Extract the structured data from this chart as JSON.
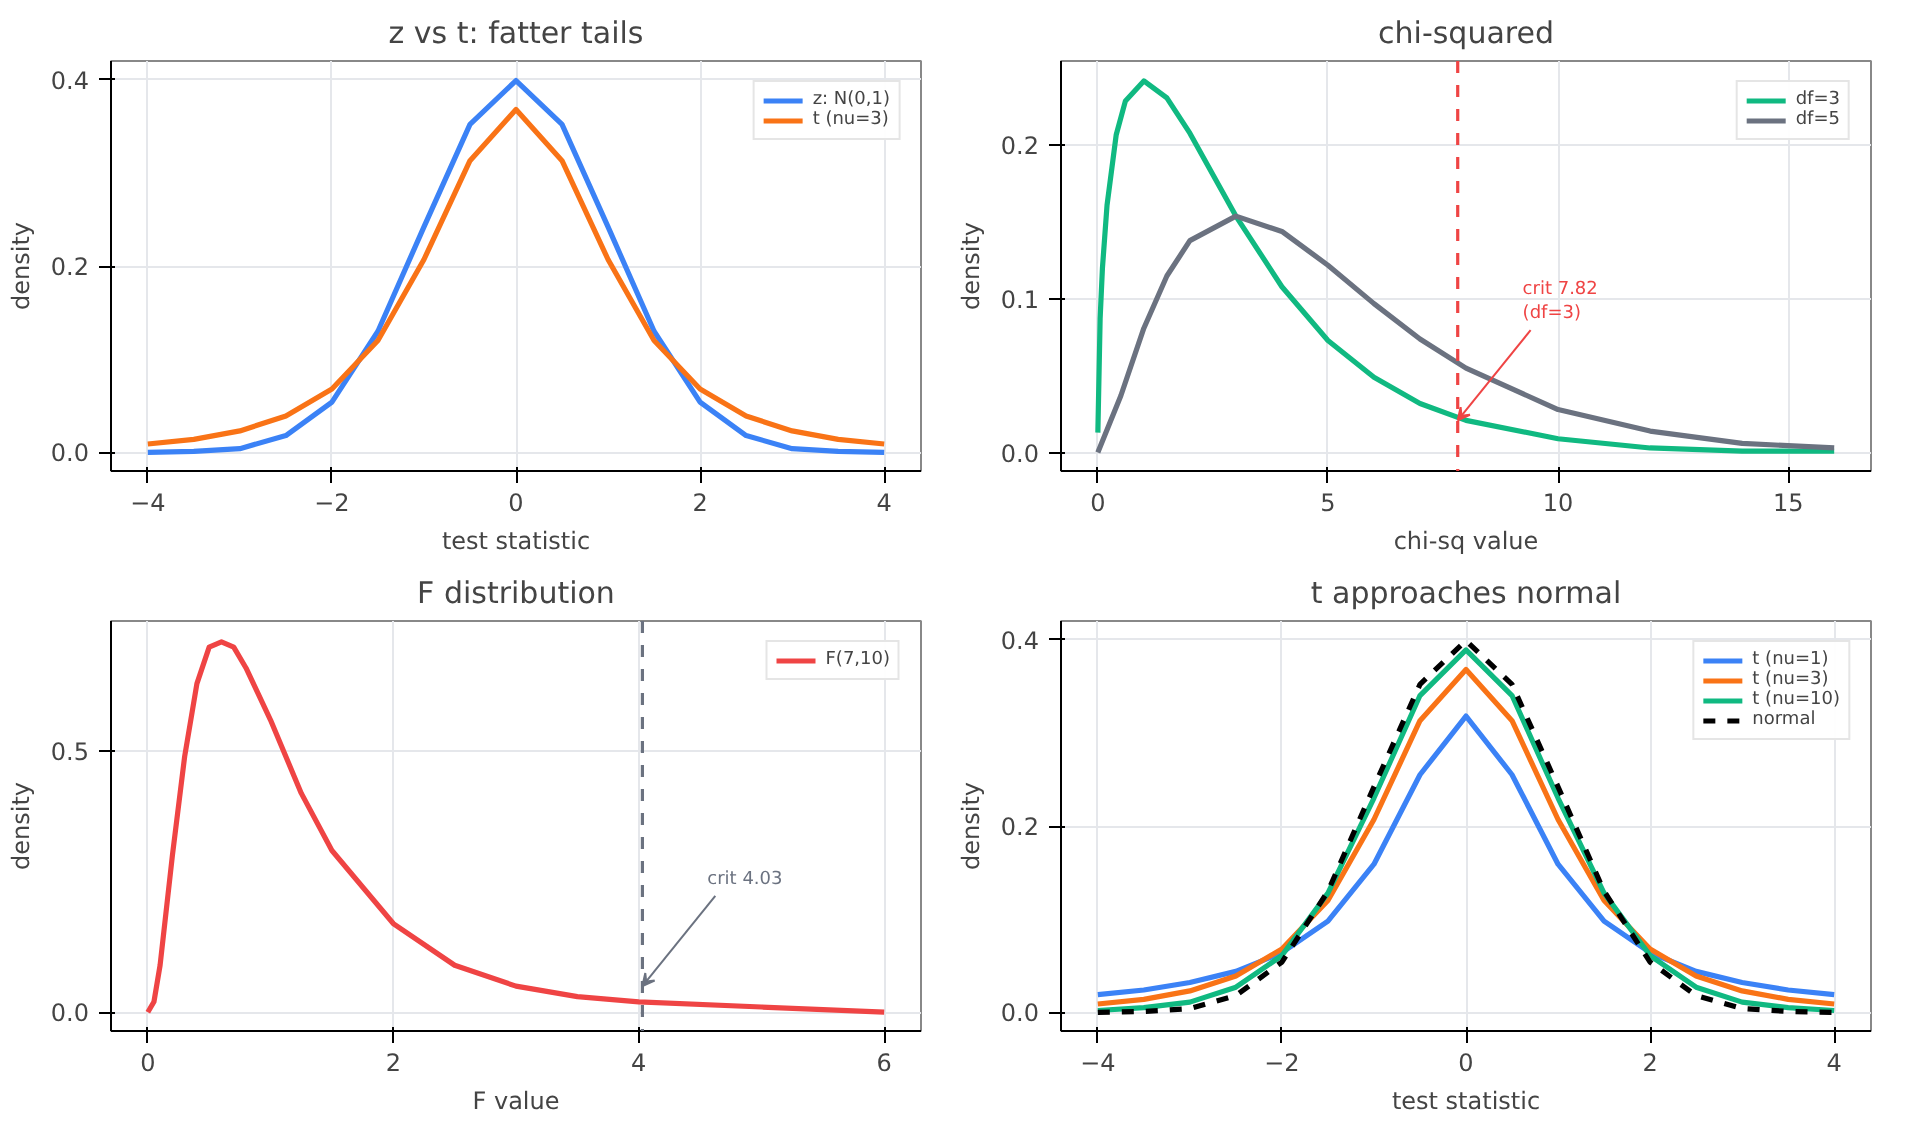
{
  "chart_data": [
    {
      "type": "line",
      "title": "z vs t: fatter tails",
      "xlabel": "test statistic",
      "ylabel": "density",
      "grid": true,
      "legend": "top right",
      "xlim": [
        -4.4,
        4.4
      ],
      "ylim": [
        -0.02,
        0.42
      ],
      "xticks": [
        -4,
        -2,
        0,
        2,
        4
      ],
      "yticks": [
        {
          "value": 0,
          "label": "0.0"
        },
        {
          "value": 0.2,
          "label": "0.2"
        },
        {
          "value": 0.4,
          "label": "0.4"
        }
      ],
      "series": [
        {
          "name": "z: N(0,1)",
          "color": "#3b82f6",
          "x": [
            -4,
            -3.5,
            -3,
            -2.5,
            -2,
            -1.5,
            -1,
            -0.5,
            0,
            0.5,
            1,
            1.5,
            2,
            2.5,
            3,
            3.5,
            4
          ],
          "values": [
            0,
            0.001,
            0.004,
            0.018,
            0.054,
            0.13,
            0.242,
            0.352,
            0.399,
            0.352,
            0.242,
            0.13,
            0.054,
            0.018,
            0.004,
            0.001,
            0
          ]
        },
        {
          "name": "t (nu=3)",
          "color": "#f97316",
          "x": [
            -4,
            -3.5,
            -3,
            -2.5,
            -2,
            -1.5,
            -1,
            -0.5,
            0,
            0.5,
            1,
            1.5,
            2,
            2.5,
            3,
            3.5,
            4
          ],
          "values": [
            0.009,
            0.014,
            0.023,
            0.039,
            0.068,
            0.12,
            0.207,
            0.313,
            0.368,
            0.313,
            0.207,
            0.12,
            0.068,
            0.039,
            0.023,
            0.014,
            0.009
          ]
        }
      ]
    },
    {
      "type": "line",
      "title": "chi-squared",
      "xlabel": "chi-sq value",
      "ylabel": "density",
      "grid": true,
      "legend": "top right",
      "xlim": [
        -0.8,
        16.8
      ],
      "ylim": [
        -0.012,
        0.255
      ],
      "xticks": [
        0,
        5,
        10,
        15
      ],
      "yticks": [
        {
          "value": 0,
          "label": "0.0"
        },
        {
          "value": 0.1,
          "label": "0.1"
        },
        {
          "value": 0.2,
          "label": "0.2"
        }
      ],
      "ref_lines": [
        {
          "axis": "x",
          "value": 7.82,
          "color": "#ef4444",
          "line_style": "dashed"
        }
      ],
      "annotations": [
        {
          "text": "crit 7.82\n(df=3)",
          "x": 7.82,
          "y": 0.021
        }
      ],
      "series": [
        {
          "name": "df=3",
          "color": "#10b981",
          "x": [
            0.001,
            0.05,
            0.1,
            0.2,
            0.4,
            0.6,
            1,
            1.5,
            2,
            3,
            4,
            5,
            6,
            7,
            8,
            10,
            12,
            14,
            16
          ],
          "values": [
            0.013,
            0.087,
            0.12,
            0.161,
            0.207,
            0.229,
            0.242,
            0.231,
            0.208,
            0.154,
            0.108,
            0.073,
            0.049,
            0.032,
            0.021,
            0.009,
            0.003,
            0.001,
            0.001
          ]
        },
        {
          "name": "df=5",
          "color": "#6b7280",
          "x": [
            0,
            0.5,
            1,
            1.5,
            2,
            3,
            4,
            5,
            6,
            7,
            8,
            10,
            12,
            14,
            16
          ],
          "values": [
            0,
            0.037,
            0.081,
            0.115,
            0.138,
            0.154,
            0.144,
            0.122,
            0.097,
            0.074,
            0.055,
            0.028,
            0.014,
            0.006,
            0.003
          ]
        }
      ]
    },
    {
      "type": "line",
      "title": "F distribution",
      "xlabel": "F value",
      "ylabel": "density",
      "grid": true,
      "legend": "top right",
      "xlim": [
        -0.3,
        6.3
      ],
      "ylim": [
        -0.036,
        0.75
      ],
      "xticks": [
        0,
        2,
        4,
        6
      ],
      "yticks": [
        {
          "value": 0,
          "label": "0.0"
        },
        {
          "value": 0.5,
          "label": "0.5"
        }
      ],
      "ref_lines": [
        {
          "axis": "x",
          "value": 4.03,
          "color": "#6b7280",
          "line_style": "dashed"
        }
      ],
      "annotations": [
        {
          "text": "crit 4.03",
          "x": 4.03,
          "y": 0.05
        }
      ],
      "series": [
        {
          "name": "F(7,10)",
          "color": "#ef4444",
          "x": [
            0,
            0.05,
            0.1,
            0.2,
            0.3,
            0.4,
            0.5,
            0.6,
            0.7,
            0.8,
            1,
            1.25,
            1.5,
            2,
            2.5,
            3,
            3.5,
            4,
            5,
            6
          ],
          "values": [
            0,
            0.02,
            0.09,
            0.3,
            0.49,
            0.63,
            0.7,
            0.71,
            0.7,
            0.66,
            0.56,
            0.42,
            0.31,
            0.17,
            0.09,
            0.05,
            0.03,
            0.02,
            0.01,
            0
          ]
        }
      ]
    },
    {
      "type": "line",
      "title": "t approaches normal",
      "xlabel": "test statistic",
      "ylabel": "density",
      "grid": true,
      "legend": "top right",
      "xlim": [
        -4.4,
        4.4
      ],
      "ylim": [
        -0.02,
        0.42
      ],
      "xticks": [
        -4,
        -2,
        0,
        2,
        4
      ],
      "yticks": [
        {
          "value": 0,
          "label": "0.0"
        },
        {
          "value": 0.2,
          "label": "0.2"
        },
        {
          "value": 0.4,
          "label": "0.4"
        }
      ],
      "series": [
        {
          "name": "t (nu=1)",
          "color": "#3b82f6",
          "x": [
            -4,
            -3.5,
            -3,
            -2.5,
            -2,
            -1.5,
            -1,
            -0.5,
            0,
            0.5,
            1,
            1.5,
            2,
            2.5,
            3,
            3.5,
            4
          ],
          "values": [
            0.019,
            0.024,
            0.032,
            0.044,
            0.064,
            0.098,
            0.159,
            0.255,
            0.318,
            0.255,
            0.159,
            0.098,
            0.064,
            0.044,
            0.032,
            0.024,
            0.019
          ]
        },
        {
          "name": "t (nu=3)",
          "color": "#f97316",
          "x": [
            -4,
            -3.5,
            -3,
            -2.5,
            -2,
            -1.5,
            -1,
            -0.5,
            0,
            0.5,
            1,
            1.5,
            2,
            2.5,
            3,
            3.5,
            4
          ],
          "values": [
            0.009,
            0.014,
            0.023,
            0.039,
            0.068,
            0.12,
            0.207,
            0.313,
            0.368,
            0.313,
            0.207,
            0.12,
            0.068,
            0.039,
            0.023,
            0.014,
            0.009
          ]
        },
        {
          "name": "t (nu=10)",
          "color": "#10b981",
          "x": [
            -4,
            -3.5,
            -3,
            -2.5,
            -2,
            -1.5,
            -1,
            -0.5,
            0,
            0.5,
            1,
            1.5,
            2,
            2.5,
            3,
            3.5,
            4
          ],
          "values": [
            0.002,
            0.005,
            0.011,
            0.027,
            0.061,
            0.128,
            0.23,
            0.34,
            0.389,
            0.34,
            0.23,
            0.128,
            0.061,
            0.027,
            0.011,
            0.005,
            0.002
          ]
        },
        {
          "name": "normal",
          "color": "#000000",
          "line_style": "dashed",
          "x": [
            -4,
            -3.5,
            -3,
            -2.5,
            -2,
            -1.5,
            -1,
            -0.5,
            0,
            0.5,
            1,
            1.5,
            2,
            2.5,
            3,
            3.5,
            4
          ],
          "values": [
            0,
            0.001,
            0.004,
            0.018,
            0.054,
            0.13,
            0.242,
            0.352,
            0.399,
            0.352,
            0.242,
            0.13,
            0.054,
            0.018,
            0.004,
            0.001,
            0
          ]
        }
      ]
    }
  ]
}
